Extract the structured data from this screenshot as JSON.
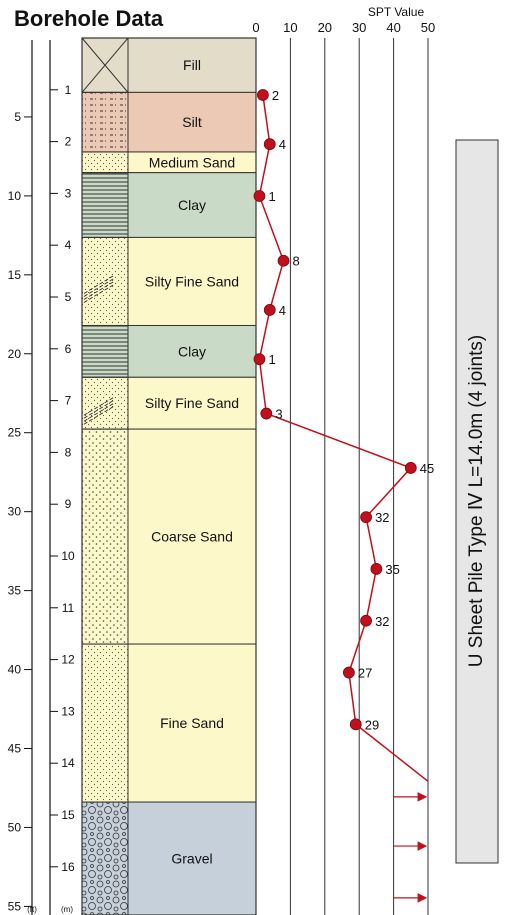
{
  "title": "Borehole Data",
  "spt_axis": {
    "label": "SPT Value",
    "ticks": [
      0,
      10,
      20,
      30,
      40,
      50
    ],
    "range": [
      0,
      50
    ]
  },
  "depth_scale_ft": {
    "unit_label": "(ft)",
    "ticks": [
      5,
      10,
      15,
      20,
      25,
      30,
      35,
      40,
      45,
      50,
      55
    ]
  },
  "depth_scale_m": {
    "unit_label": "(m)",
    "ticks": [
      1,
      2,
      3,
      4,
      5,
      6,
      7,
      8,
      9,
      10,
      11,
      12,
      13,
      14,
      15,
      16
    ]
  },
  "layers": [
    {
      "name": "Fill",
      "top_m": 0.0,
      "bottom_m": 1.05,
      "color": "#e2dcc8",
      "pattern": "fill-x"
    },
    {
      "name": "Silt",
      "top_m": 1.05,
      "bottom_m": 2.2,
      "color": "#ecc9b4",
      "pattern": "silt"
    },
    {
      "name": "Medium Sand",
      "top_m": 2.2,
      "bottom_m": 2.6,
      "color": "#fdf8c9",
      "pattern": "sand"
    },
    {
      "name": "Clay",
      "top_m": 2.6,
      "bottom_m": 3.85,
      "color": "#c9dbc6",
      "pattern": "clay"
    },
    {
      "name": "Silty Fine Sand",
      "top_m": 3.85,
      "bottom_m": 5.55,
      "color": "#fdf8c9",
      "pattern": "silty-sand"
    },
    {
      "name": "Clay",
      "top_m": 5.55,
      "bottom_m": 6.55,
      "color": "#c9dbc6",
      "pattern": "clay"
    },
    {
      "name": "Silty Fine Sand",
      "top_m": 6.55,
      "bottom_m": 7.55,
      "color": "#fdf8c9",
      "pattern": "silty-sand"
    },
    {
      "name": "Coarse Sand",
      "top_m": 7.55,
      "bottom_m": 11.7,
      "color": "#fdf8c9",
      "pattern": "coarse-sand"
    },
    {
      "name": "Fine Sand",
      "top_m": 11.7,
      "bottom_m": 14.75,
      "color": "#fdf8c9",
      "pattern": "sand"
    },
    {
      "name": "Gravel",
      "top_m": 14.75,
      "bottom_m": 17.3,
      "color": "#c5d0db",
      "pattern": "gravel"
    }
  ],
  "spt_points": [
    {
      "depth_m": 1.1,
      "value": 2
    },
    {
      "depth_m": 2.05,
      "value": 4
    },
    {
      "depth_m": 3.05,
      "value": 1
    },
    {
      "depth_m": 4.3,
      "value": 8
    },
    {
      "depth_m": 5.25,
      "value": 4
    },
    {
      "depth_m": 6.2,
      "value": 1
    },
    {
      "depth_m": 7.25,
      "value": 3
    },
    {
      "depth_m": 8.3,
      "value": 45
    },
    {
      "depth_m": 9.25,
      "value": 32
    },
    {
      "depth_m": 10.25,
      "value": 35
    },
    {
      "depth_m": 11.25,
      "value": 32
    },
    {
      "depth_m": 12.25,
      "value": 27
    },
    {
      "depth_m": 13.25,
      "value": 29
    }
  ],
  "spt_trailing_depth_m": 14.35,
  "spt_arrow_depths_m": [
    14.65,
    15.6,
    16.6
  ],
  "pile_label": "U Sheet Pile Type Ⅳ   L=14.0m (4 joints)",
  "colors": {
    "spt_line": "#c0101c",
    "spt_point": "#c0101c",
    "pile_fill": "#e6e6e6",
    "grid": "#333333"
  }
}
